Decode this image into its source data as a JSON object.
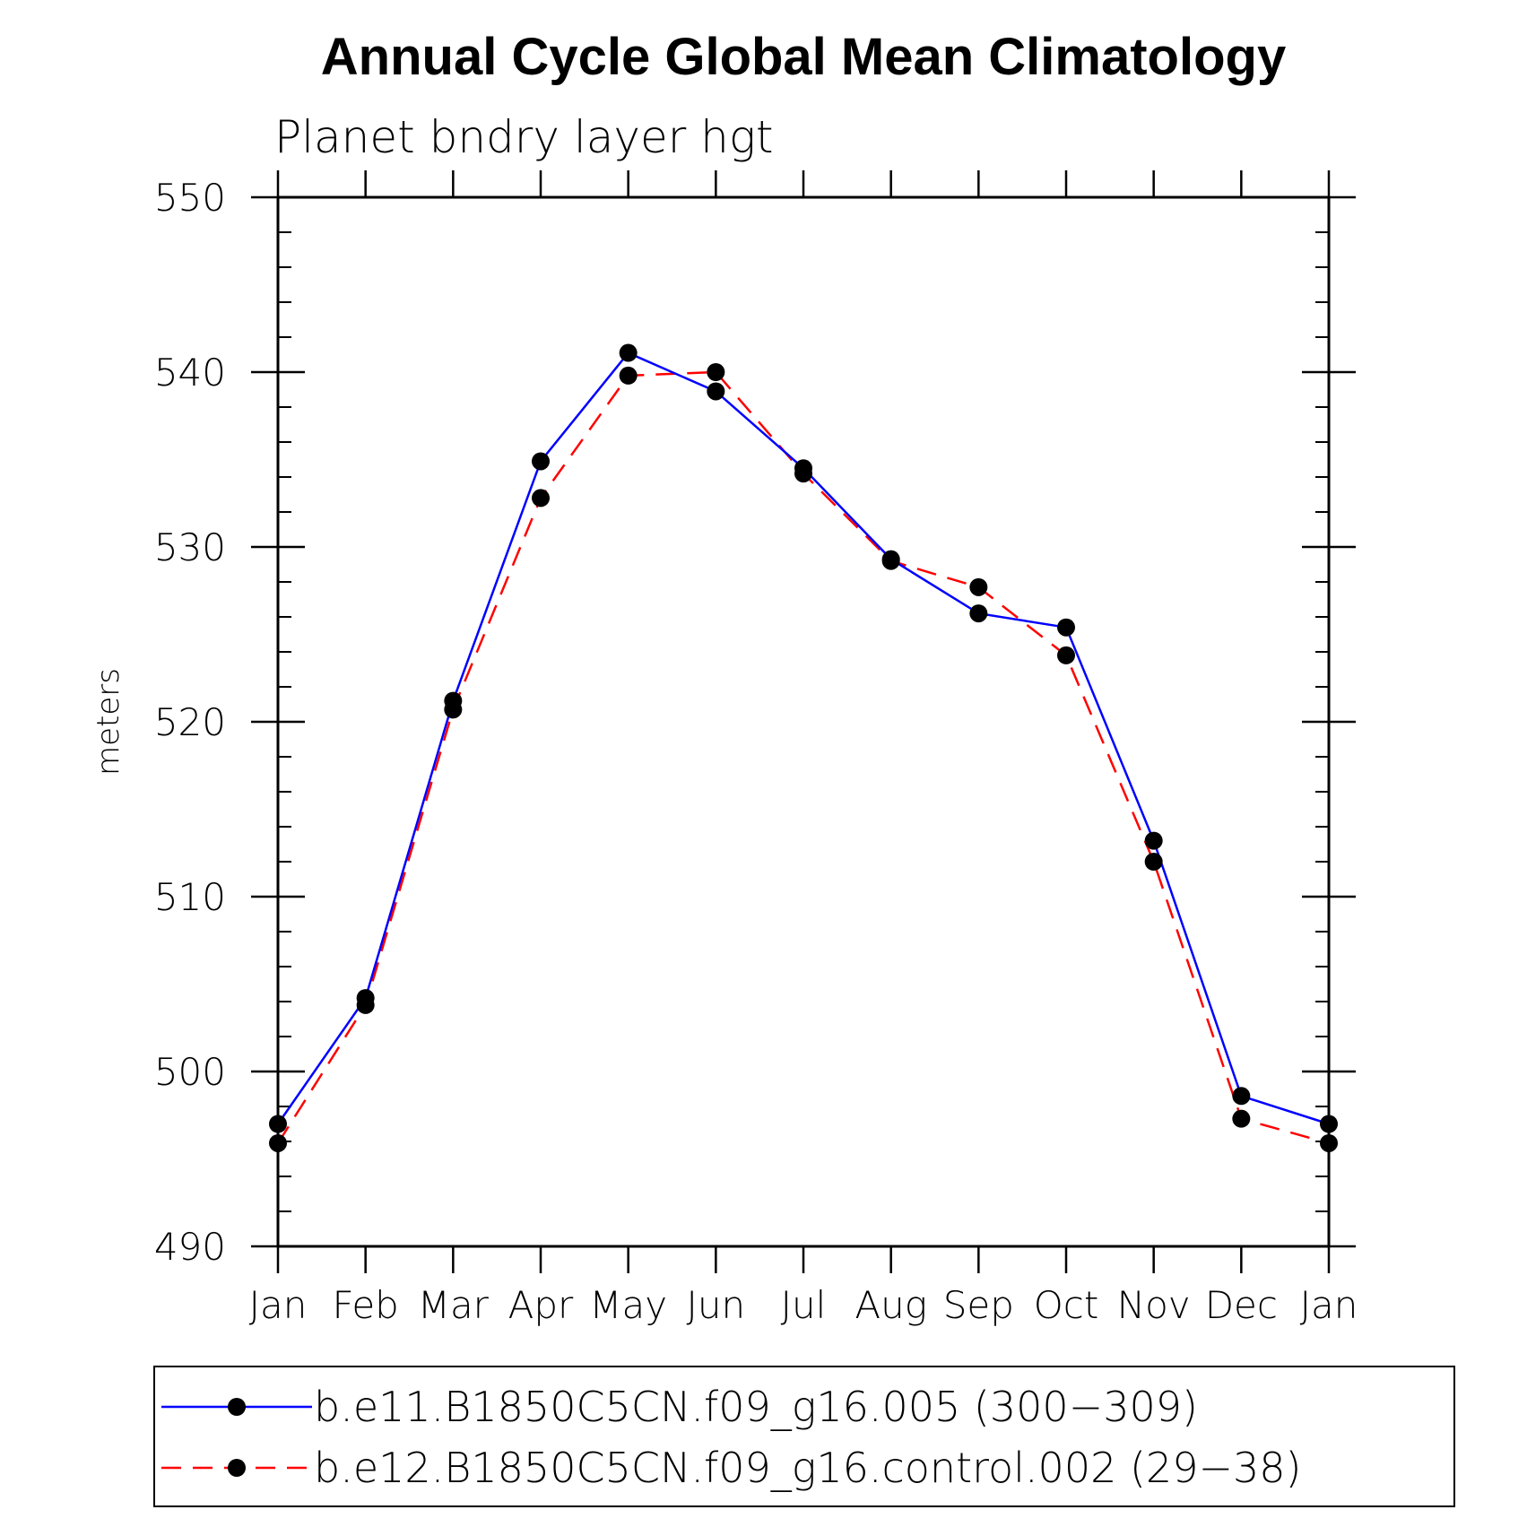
{
  "chart_data": {
    "type": "line",
    "title": "Annual Cycle Global Mean Climatology",
    "subtitle": "Planet bndry layer hgt",
    "ylabel": "meters",
    "xlabel": "",
    "ylim": [
      490,
      550
    ],
    "yticks": [
      "490",
      "500",
      "510",
      "520",
      "530",
      "540",
      "550"
    ],
    "categories": [
      "Jan",
      "Feb",
      "Mar",
      "Apr",
      "May",
      "Jun",
      "Jul",
      "Aug",
      "Sep",
      "Oct",
      "Nov",
      "Dec",
      "Jan"
    ],
    "grid": false,
    "legend_position": "bottom",
    "series": [
      {
        "name": "b.e11.B1850C5CN.f09_g16.005 (300−309)",
        "color": "#0000ff",
        "dash": "solid",
        "marker": "filled-circle",
        "values": [
          497.0,
          504.2,
          521.2,
          534.9,
          541.1,
          538.9,
          534.5,
          529.3,
          526.2,
          525.4,
          513.2,
          498.6,
          497.0
        ]
      },
      {
        "name": "b.e12.B1850C5CN.f09_g16.control.002 (29−38)",
        "color": "#ff0000",
        "dash": "dashed",
        "marker": "filled-circle",
        "values": [
          495.9,
          503.8,
          520.7,
          532.8,
          539.8,
          540.0,
          534.2,
          529.2,
          527.7,
          523.8,
          512.0,
          497.3,
          495.9
        ]
      }
    ]
  }
}
